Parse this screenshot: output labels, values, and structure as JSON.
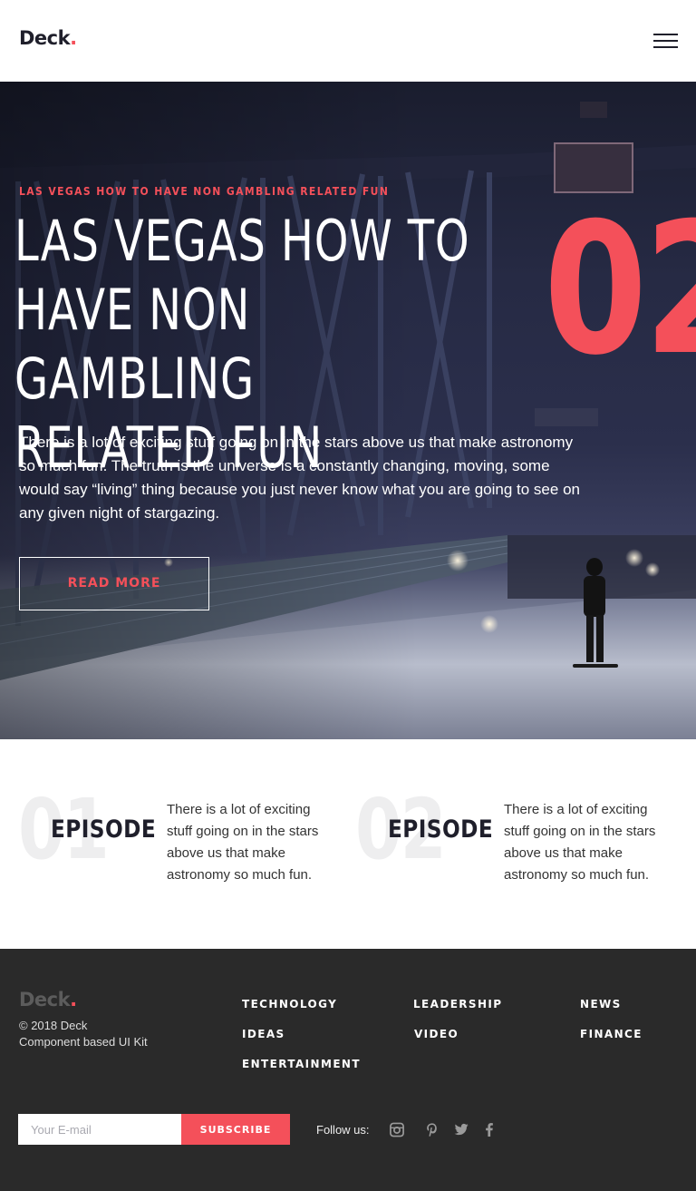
{
  "header": {
    "logo_text": "Deck",
    "logo_dot": ".",
    "menu_icon": "hamburger-icon"
  },
  "hero": {
    "eyebrow": "LAS VEGAS HOW TO HAVE NON GAMBLING RELATED FUN",
    "title_lines": [
      "LAS VEGAS HOW TO",
      "HAVE NON GAMBLING",
      "RELATED FUN"
    ],
    "number": "02",
    "description": "There is a lot of exciting stuff going on in the stars above us that make astronomy so much fun. The truth is the universe is a constantly changing, moving, some would say “living” thing because you just never know what you are going to see on any given night of stargazing.",
    "button_label": "READ MORE"
  },
  "episodes": [
    {
      "number": "01",
      "label": "EPISODE",
      "text": "There is a lot of exciting stuff going on in the stars above us that make astronomy so much fun."
    },
    {
      "number": "02",
      "label": "EPISODE",
      "text": "There is a lot of exciting stuff going on in the stars above us that make astronomy so much fun."
    }
  ],
  "footer": {
    "logo_text": "Deck",
    "logo_dot": ".",
    "copyright": "© 2018 Deck",
    "tagline": "Component based UI Kit",
    "links": {
      "technology": "TECHNOLOGY",
      "ideas": "IDEAS",
      "entertainment": "ENTERTAINMENT",
      "leadership": "LEADERSHIP",
      "video": "VIDEO",
      "news": "NEWS",
      "finance": "FINANCE"
    },
    "email_placeholder": "Your E-mail",
    "subscribe_label": "SUBSCRIBE",
    "follow_label": "Follow us:",
    "social_icons": [
      "instagram-icon",
      "pinterest-icon",
      "twitter-icon",
      "facebook-icon"
    ]
  },
  "colors": {
    "accent": "#f4505a",
    "dark": "#1f1f2b",
    "footer_bg": "#2a2a2a"
  }
}
